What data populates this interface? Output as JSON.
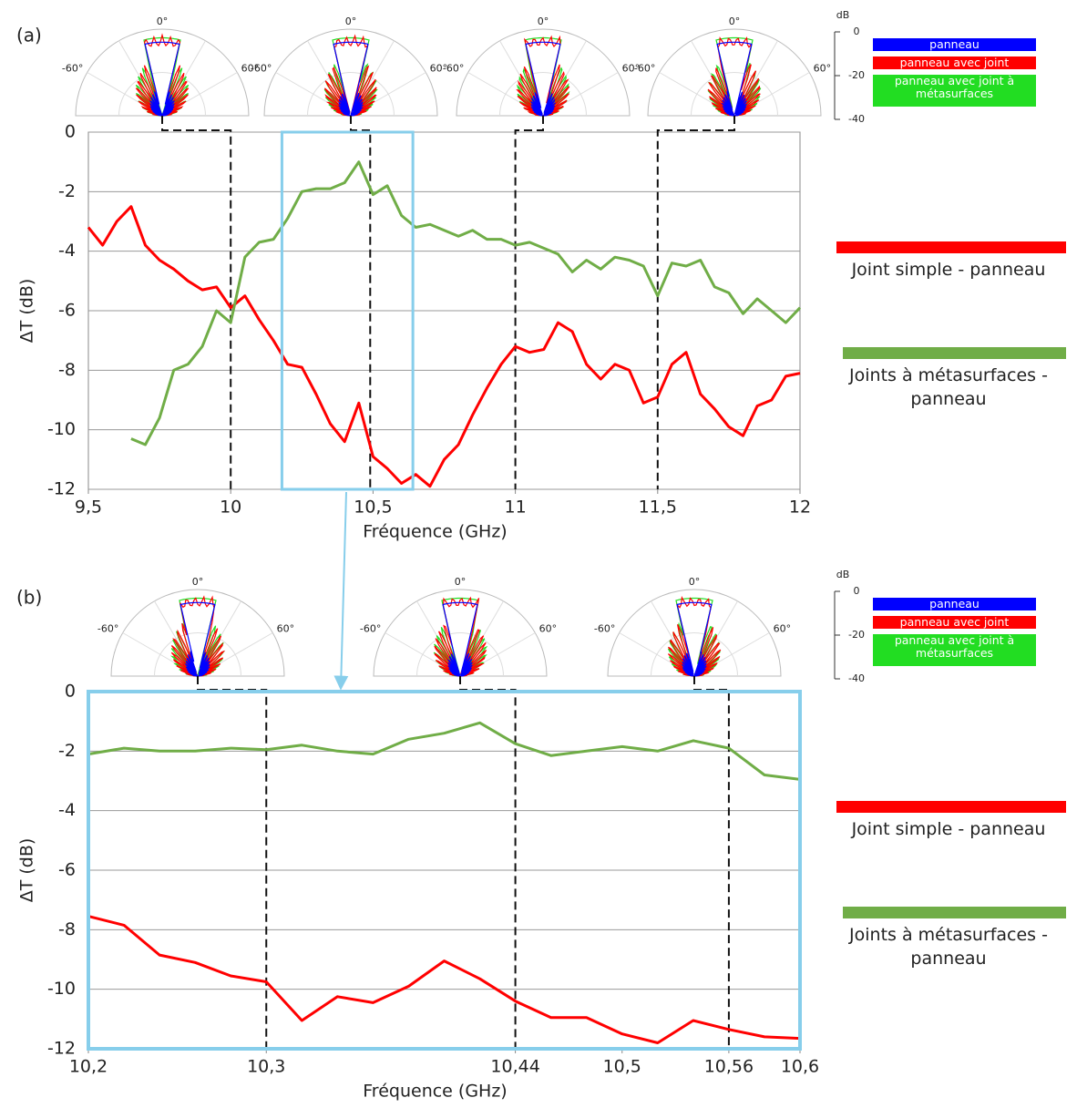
{
  "chart_data": [
    {
      "type": "line",
      "panel_label": "(a)",
      "x_label": "Fréquence (GHz)",
      "y_label": "ΔT (dB)",
      "xlim": [
        9.5,
        12
      ],
      "ylim": [
        -12,
        0
      ],
      "xticks": [
        {
          "value": 9.5,
          "label": "9,5"
        },
        10,
        {
          "value": 10.5,
          "label": "10,5"
        },
        11,
        {
          "value": 11.5,
          "label": "11,5"
        },
        12
      ],
      "yticks": [
        0,
        -2,
        -4,
        -6,
        -8,
        -10,
        -12
      ],
      "grid": true,
      "markers": [
        10.0,
        10.49,
        11.0,
        11.5
      ],
      "highlight": [
        10.18,
        10.64
      ],
      "highlight_color": "#87ceeb",
      "x": [
        9.5,
        9.55,
        9.6,
        9.65,
        9.7,
        9.75,
        9.8,
        9.85,
        9.9,
        9.95,
        10.0,
        10.05,
        10.1,
        10.15,
        10.2,
        10.25,
        10.3,
        10.35,
        10.4,
        10.45,
        10.5,
        10.55,
        10.6,
        10.65,
        10.7,
        10.75,
        10.8,
        10.85,
        10.9,
        10.95,
        11.0,
        11.05,
        11.1,
        11.15,
        11.2,
        11.25,
        11.3,
        11.35,
        11.4,
        11.45,
        11.5,
        11.55,
        11.6,
        11.65,
        11.7,
        11.75,
        11.8,
        11.85,
        11.9,
        11.95,
        12.0
      ],
      "series": [
        {
          "name": "Joint simple - panneau",
          "color": "#ff0000",
          "values": [
            -3.2,
            -3.8,
            -3.0,
            -2.5,
            -3.8,
            -4.3,
            -4.6,
            -5.0,
            -5.3,
            -5.2,
            -5.9,
            -5.5,
            -6.3,
            -7.0,
            -7.8,
            -7.9,
            -8.8,
            -9.8,
            -10.4,
            -9.1,
            -10.9,
            -11.3,
            -11.8,
            -11.5,
            -11.9,
            -11.0,
            -10.5,
            -9.5,
            -8.6,
            -7.8,
            -7.2,
            -7.4,
            -7.3,
            -6.4,
            -6.7,
            -7.8,
            -8.3,
            -7.8,
            -8.0,
            -9.1,
            -8.9,
            -7.8,
            -7.4,
            -8.8,
            -9.3,
            -9.9,
            -10.2,
            -9.2,
            -9.0,
            -8.2,
            -8.1
          ]
        },
        {
          "name": "Joints à métasurfaces - panneau",
          "color": "#70ad47",
          "values": [
            null,
            null,
            null,
            -10.3,
            -10.5,
            -9.6,
            -8.0,
            -7.8,
            -7.2,
            -6.0,
            -6.4,
            -4.2,
            -3.7,
            -3.6,
            -2.9,
            -2.0,
            -1.9,
            -1.9,
            -1.7,
            -1.0,
            -2.1,
            -1.8,
            -2.8,
            -3.2,
            -3.1,
            -3.3,
            -3.5,
            -3.3,
            -3.6,
            -3.6,
            -3.8,
            -3.7,
            -3.9,
            -4.1,
            -4.7,
            -4.3,
            -4.6,
            -4.2,
            -4.3,
            -4.5,
            -5.5,
            -4.4,
            -4.5,
            -4.3,
            -5.2,
            -5.4,
            -6.1,
            -5.6,
            -6.0,
            -6.4,
            -5.9
          ]
        }
      ]
    },
    {
      "type": "line",
      "panel_label": "(b)",
      "x_label": "Fréquence (GHz)",
      "y_label": "ΔT (dB)",
      "xlim": [
        10.2,
        10.6
      ],
      "ylim": [
        -12,
        0
      ],
      "xticks": [
        {
          "value": 10.2,
          "label": "10,2"
        },
        {
          "value": 10.3,
          "label": "10,3"
        },
        {
          "value": 10.44,
          "label": "10,44"
        },
        {
          "value": 10.5,
          "label": "10,5"
        },
        {
          "value": 10.56,
          "label": "10,56"
        },
        {
          "value": 10.6,
          "label": "10,6"
        }
      ],
      "yticks": [
        0,
        -2,
        -4,
        -6,
        -8,
        -10,
        -12
      ],
      "grid": true,
      "markers": [
        10.3,
        10.44,
        10.56
      ],
      "frame_color": "#87ceeb",
      "x": [
        10.2,
        10.22,
        10.24,
        10.26,
        10.28,
        10.3,
        10.32,
        10.34,
        10.36,
        10.38,
        10.4,
        10.42,
        10.44,
        10.46,
        10.48,
        10.5,
        10.52,
        10.54,
        10.56,
        10.58,
        10.6
      ],
      "series": [
        {
          "name": "Joint simple - panneau",
          "color": "#ff0000",
          "values": [
            -7.55,
            -7.85,
            -8.85,
            -9.1,
            -9.55,
            -9.75,
            -11.05,
            -10.25,
            -10.45,
            -9.9,
            -9.05,
            -9.65,
            -10.4,
            -10.95,
            -10.95,
            -11.5,
            -11.8,
            -11.05,
            -11.35,
            -11.6,
            -11.65
          ]
        },
        {
          "name": "Joints à métasurfaces - panneau",
          "color": "#70ad47",
          "values": [
            -2.1,
            -1.9,
            -2.0,
            -2.0,
            -1.9,
            -1.95,
            -1.8,
            -2.0,
            -2.1,
            -1.6,
            -1.4,
            -1.05,
            -1.75,
            -2.15,
            -2.0,
            -1.85,
            -2.0,
            -1.65,
            -1.9,
            -2.8,
            -2.95
          ]
        }
      ]
    }
  ],
  "polar": {
    "angle_labels": [
      "-60°",
      "0°",
      "60°"
    ],
    "unit": "dB",
    "ticks": [
      0,
      -20,
      -40
    ],
    "entries": [
      {
        "name": "panneau",
        "color": "#0000ff"
      },
      {
        "name": "panneau avec joint",
        "color": "#ff0000"
      },
      {
        "name": "panneau avec joint à métasurfaces",
        "color": "#22dd22"
      }
    ]
  }
}
